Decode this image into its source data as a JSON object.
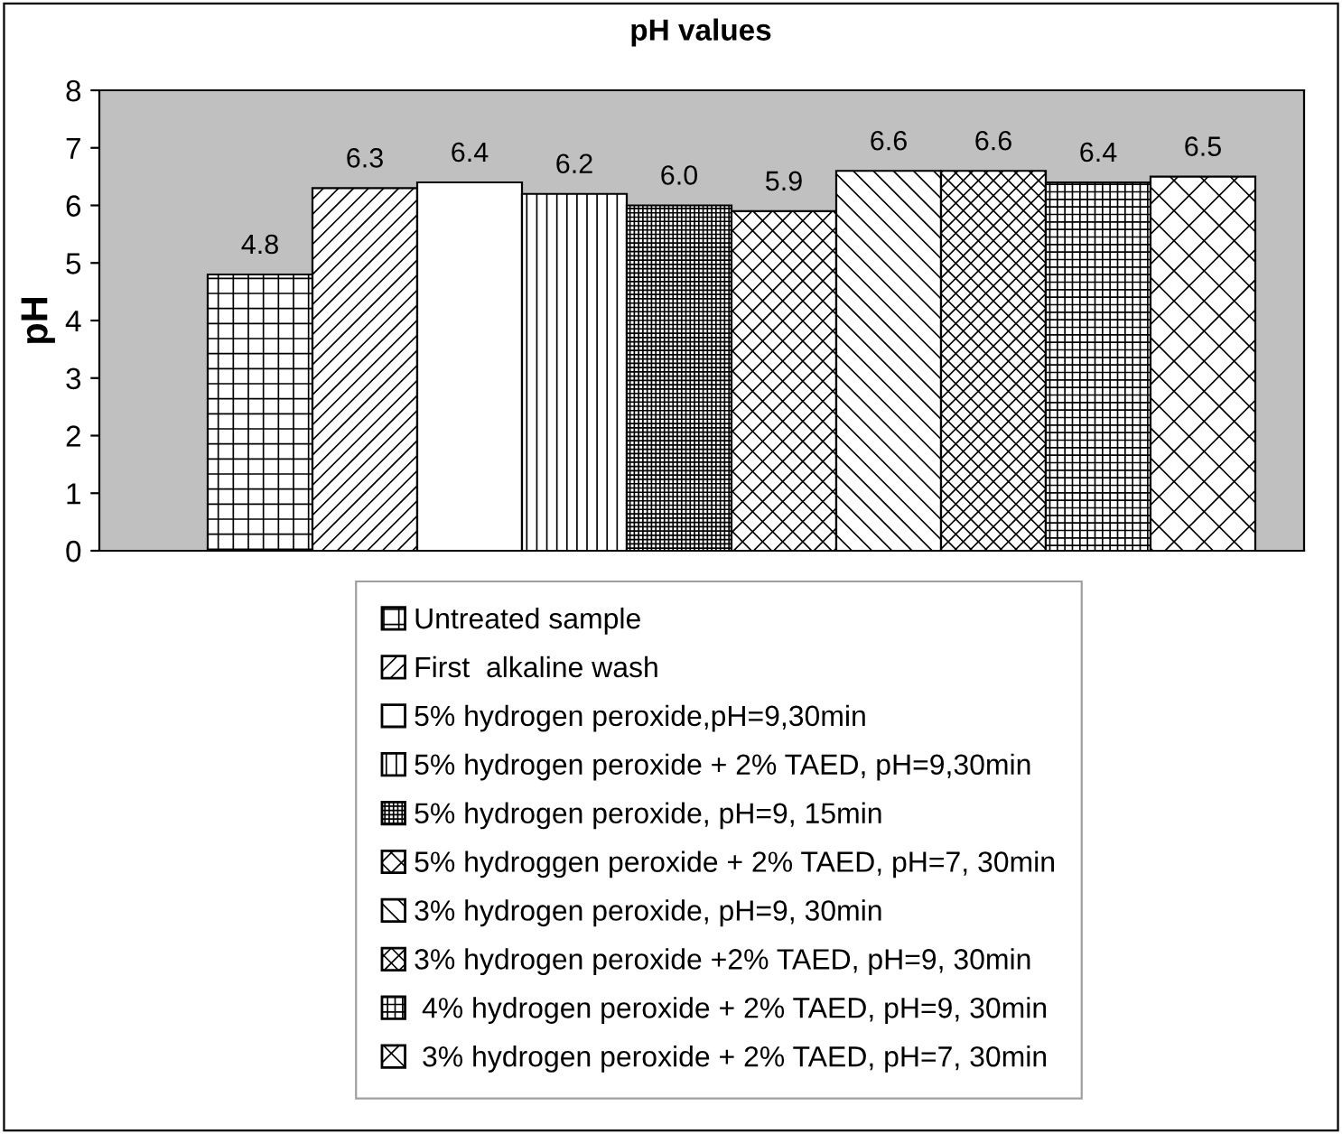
{
  "chart_data": {
    "type": "bar",
    "title": "pH values",
    "ylabel": "pH",
    "categories": [
      null
    ],
    "series": [
      {
        "name": "Untreated sample",
        "color": "#000000",
        "values": [
          4.8
        ]
      },
      {
        "name": "First  alkaline wash",
        "color": "#000000",
        "values": [
          6.3
        ]
      },
      {
        "name": "5% hydrogen peroxide,pH=9,30min",
        "color": "#ffffff",
        "values": [
          6.4
        ]
      },
      {
        "name": "5% hydrogen peroxide + 2% TAED, pH=9,30min",
        "color": "#000000",
        "values": [
          6.2
        ]
      },
      {
        "name": "5% hydrogen peroxide, pH=9, 15min",
        "color": "#000000",
        "values": [
          6.0
        ]
      },
      {
        "name": "5% hydroggen peroxide + 2% TAED, pH=7, 30min",
        "color": "#000000",
        "values": [
          5.9
        ]
      },
      {
        "name": "3% hydrogen peroxide, pH=9, 30min",
        "color": "#000000",
        "values": [
          6.6
        ]
      },
      {
        "name": "3% hydrogen peroxide +2% TAED, pH=9, 30min",
        "color": "#000000",
        "values": [
          6.6
        ]
      },
      {
        "name": " 4% hydrogen peroxide + 2% TAED, pH=9, 30min",
        "color": "#000000",
        "values": [
          6.4
        ]
      },
      {
        "name": " 3% hydrogen peroxide + 2% TAED, pH=7, 30min",
        "color": "#000000",
        "values": [
          6.5
        ]
      }
    ],
    "ylim": [
      0,
      8
    ],
    "yticks": [
      0,
      1,
      2,
      3,
      4,
      5,
      6,
      7,
      8
    ],
    "value_labels": [
      "4.8",
      "6.3",
      "6.4",
      "6.2",
      "6.0",
      "5.9",
      "6.6",
      "6.6",
      "6.4",
      "6.5"
    ],
    "grid": false,
    "legend": "bottom"
  }
}
